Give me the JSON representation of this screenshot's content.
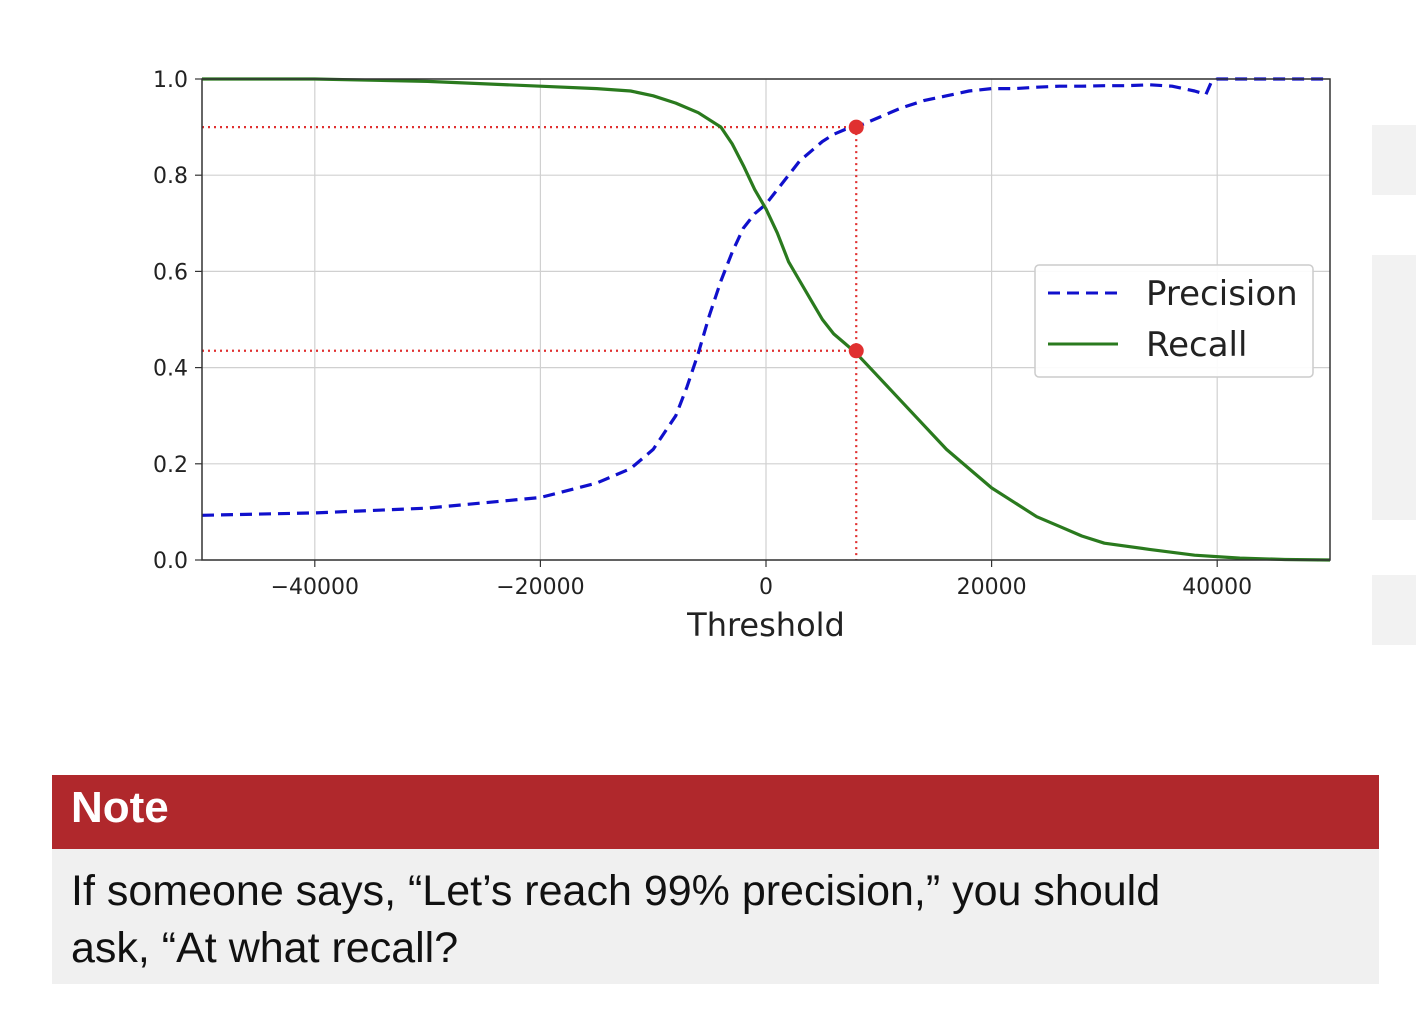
{
  "chart_data": {
    "type": "line",
    "title": "",
    "xlabel": "Threshold",
    "ylabel": "",
    "xlim": [
      -50000,
      50000
    ],
    "ylim": [
      0,
      1.0
    ],
    "grid": true,
    "legend_position": "center-right",
    "x_ticks": [
      -40000,
      -20000,
      0,
      20000,
      40000
    ],
    "x_tick_labels": [
      "−40000",
      "−20000",
      "0",
      "20000",
      "40000"
    ],
    "y_ticks": [
      0.0,
      0.2,
      0.4,
      0.6,
      0.8,
      1.0
    ],
    "y_tick_labels": [
      "0.0",
      "0.2",
      "0.4",
      "0.6",
      "0.8",
      "1.0"
    ],
    "series": [
      {
        "name": "Precision",
        "style": "dashed",
        "color": "#1010cc",
        "x": [
          -50000,
          -40000,
          -30000,
          -20000,
          -15000,
          -12000,
          -10000,
          -8000,
          -7000,
          -6000,
          -5000,
          -4000,
          -3000,
          -2000,
          -1000,
          0,
          1000,
          2000,
          3000,
          4000,
          5000,
          6000,
          7000,
          8000,
          9000,
          10000,
          12000,
          14000,
          16000,
          18000,
          20000,
          22000,
          24000,
          26000,
          28000,
          30000,
          32000,
          34000,
          36000,
          38000,
          39000,
          39500,
          40000,
          45000,
          50000
        ],
        "y": [
          0.093,
          0.098,
          0.108,
          0.13,
          0.16,
          0.19,
          0.23,
          0.3,
          0.36,
          0.43,
          0.51,
          0.58,
          0.64,
          0.69,
          0.72,
          0.74,
          0.77,
          0.8,
          0.83,
          0.85,
          0.87,
          0.885,
          0.895,
          0.9,
          0.91,
          0.92,
          0.94,
          0.955,
          0.965,
          0.975,
          0.98,
          0.98,
          0.983,
          0.985,
          0.985,
          0.986,
          0.986,
          0.988,
          0.985,
          0.975,
          0.968,
          0.995,
          1.0,
          1.0,
          1.0
        ]
      },
      {
        "name": "Recall",
        "style": "solid",
        "color": "#2a7a1e",
        "x": [
          -50000,
          -40000,
          -30000,
          -20000,
          -15000,
          -12000,
          -10000,
          -8000,
          -6000,
          -4000,
          -3000,
          -2000,
          -1000,
          0,
          1000,
          2000,
          3000,
          4000,
          5000,
          6000,
          7000,
          8000,
          10000,
          12000,
          14000,
          16000,
          18000,
          20000,
          22000,
          24000,
          26000,
          28000,
          30000,
          34000,
          38000,
          42000,
          46000,
          50000
        ],
        "y": [
          1.0,
          1.0,
          0.995,
          0.985,
          0.98,
          0.975,
          0.965,
          0.95,
          0.93,
          0.9,
          0.865,
          0.82,
          0.77,
          0.73,
          0.68,
          0.62,
          0.58,
          0.54,
          0.5,
          0.47,
          0.45,
          0.43,
          0.38,
          0.33,
          0.28,
          0.23,
          0.19,
          0.15,
          0.12,
          0.09,
          0.07,
          0.05,
          0.035,
          0.022,
          0.01,
          0.004,
          0.001,
          0.0
        ]
      }
    ],
    "reference_lines": {
      "threshold": 8000,
      "precision_level": 0.9,
      "recall_level": 0.435,
      "color": "#e03030"
    }
  },
  "note": {
    "title": "Note",
    "text_line1": "If someone says, “Let’s reach 99% precision,” you should",
    "text_line2": "ask, “At what recall?"
  }
}
